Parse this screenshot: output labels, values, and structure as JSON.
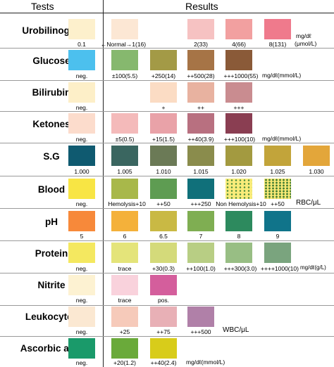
{
  "header": {
    "tests": "Tests",
    "results": "Results"
  },
  "rows": [
    {
      "test": "Urobilinogen",
      "swatches": [
        {
          "label": "0.1",
          "color": "#fdf0cc"
        },
        {
          "label": "←Normal→1(16)",
          "color": "#fce7d4"
        },
        {
          "label": "2(33)",
          "color": "#f6c2c2"
        },
        {
          "label": "4(66)",
          "color": "#f2a0a0"
        },
        {
          "label": "8(131)",
          "color": "#ef7a8c"
        }
      ],
      "unit_top": "mg/dℓ",
      "unit_bottom": "(μmol/L)"
    },
    {
      "test": "Glucose",
      "swatches": [
        {
          "label": "neg.",
          "color": "#4cc0ee"
        },
        {
          "label": "±100(5.5)",
          "color": "#86b86e"
        },
        {
          "label": "+250(14)",
          "color": "#a39a46"
        },
        {
          "label": "++500(28)",
          "color": "#a67446"
        },
        {
          "label": "+++1000(55)",
          "color": "#8a5a38"
        }
      ],
      "unit": "mg/dℓ(mmol/L)"
    },
    {
      "test": "Bilirubin",
      "swatches": [
        {
          "label": "neg.",
          "color": "#fdefc8"
        },
        {
          "label": "+",
          "color": "#fbdcc4"
        },
        {
          "label": "++",
          "color": "#e8b2a0"
        },
        {
          "label": "+++",
          "color": "#c98c90"
        }
      ]
    },
    {
      "test": "Ketones",
      "swatches": [
        {
          "label": "neg.",
          "color": "#fcdccc"
        },
        {
          "label": "±5(0.5)",
          "color": "#f4baba"
        },
        {
          "label": "+15(1.5)",
          "color": "#e9a2a8"
        },
        {
          "label": "++40(3.9)",
          "color": "#b87080"
        },
        {
          "label": "+++100(10)",
          "color": "#8a3e52"
        }
      ],
      "unit": "mg/dℓ(mmol/L)"
    },
    {
      "test": "S.G",
      "swatches": [
        {
          "label": "1.000",
          "color": "#0f5a70"
        },
        {
          "label": "1.005",
          "color": "#3a6660"
        },
        {
          "label": "1.010",
          "color": "#6b7a56"
        },
        {
          "label": "1.015",
          "color": "#8a8c4c"
        },
        {
          "label": "1.020",
          "color": "#a39a40"
        },
        {
          "label": "1.025",
          "color": "#c2a43a"
        },
        {
          "label": "1.030",
          "color": "#e3a63a"
        }
      ]
    },
    {
      "test": "Blood",
      "swatches": [
        {
          "label": "neg.",
          "color": "#f8e544"
        },
        {
          "label": "Hemolysis+10",
          "color": "#a8b84a"
        },
        {
          "label": "++50",
          "color": "#5e9c52"
        },
        {
          "label": "+++250",
          "color": "#10707a"
        },
        {
          "label": "Non Hemolysis+10",
          "color": "#f9ec7a"
        },
        {
          "label": "++50",
          "color": "#f6e874"
        }
      ],
      "unit": "RBC/μL"
    },
    {
      "test": "pH",
      "swatches": [
        {
          "label": "5",
          "color": "#f7893a"
        },
        {
          "label": "6",
          "color": "#f4b13a"
        },
        {
          "label": "6.5",
          "color": "#c9b944"
        },
        {
          "label": "7",
          "color": "#7fae52"
        },
        {
          "label": "8",
          "color": "#2d8a5e"
        },
        {
          "label": "9",
          "color": "#10748a"
        }
      ]
    },
    {
      "test": "Protein",
      "swatches": [
        {
          "label": "neg.",
          "color": "#f4e860"
        },
        {
          "label": "trace",
          "color": "#e4e47a"
        },
        {
          "label": "+30(0.3)",
          "color": "#d4da7a"
        },
        {
          "label": "++100(1.0)",
          "color": "#b8ce84"
        },
        {
          "label": "+++300(3.0)",
          "color": "#98be84"
        },
        {
          "label": "++++1000(10)",
          "color": "#7aa47e"
        }
      ],
      "unit": "mg/dℓ(g/L)"
    },
    {
      "test": "Nitrite",
      "swatches": [
        {
          "label": "neg.",
          "color": "#fdf2d2"
        },
        {
          "label": "trace",
          "color": "#f9d2dc"
        },
        {
          "label": "pos.",
          "color": "#d45e9c"
        }
      ]
    },
    {
      "test": "Leukocytes",
      "swatches": [
        {
          "label": "neg.",
          "color": "#fbe8d2"
        },
        {
          "label": "+25",
          "color": "#f6caba"
        },
        {
          "label": "++75",
          "color": "#e8b0b6"
        },
        {
          "label": "+++500",
          "color": "#b080a8"
        }
      ],
      "unit": "WBC/μL"
    },
    {
      "test": "Ascorbic acid",
      "swatches": [
        {
          "label": "neg.",
          "color": "#1a9a6a"
        },
        {
          "label": "+20(1.2)",
          "color": "#6aaa3a"
        },
        {
          "label": "++40(2.4)",
          "color": "#d8cc1a"
        }
      ],
      "unit": "mg/dℓ(mmol/L)"
    }
  ]
}
